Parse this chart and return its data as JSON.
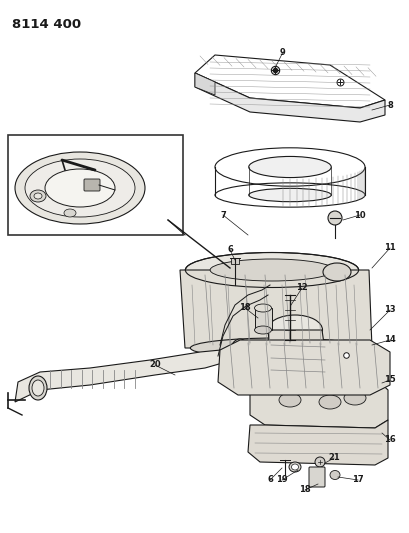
{
  "title": "8114 400",
  "bg_color": "#ffffff",
  "lc": "#1a1a1a",
  "lc_gray": "#888888",
  "lc_light": "#bbbbbb",
  "fig_width": 4.1,
  "fig_height": 5.33,
  "dpi": 100
}
